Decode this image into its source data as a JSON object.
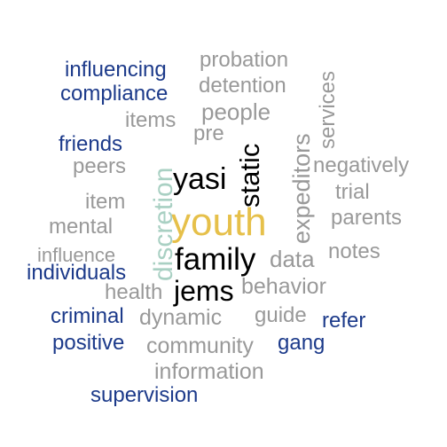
{
  "colors": {
    "gray": "#999999",
    "navy": "#1c3a8a",
    "black": "#000000",
    "gold": "#e6c04a",
    "sage": "#a9d0c3"
  },
  "words": [
    {
      "key": "youth",
      "text": "youth",
      "color": "#e6c04a"
    },
    {
      "key": "family",
      "text": "family",
      "color": "#000000"
    },
    {
      "key": "yasi",
      "text": "yasi",
      "color": "#000000"
    },
    {
      "key": "jems",
      "text": "jems",
      "color": "#000000"
    },
    {
      "key": "static",
      "text": "static",
      "color": "#000000"
    },
    {
      "key": "discretion",
      "text": "discretion",
      "color": "#a9d0c3"
    },
    {
      "key": "expeditors",
      "text": "expeditors",
      "color": "#999999"
    },
    {
      "key": "services",
      "text": "services",
      "color": "#999999"
    },
    {
      "key": "influencing",
      "text": "influencing",
      "color": "#1c3a8a"
    },
    {
      "key": "compliance",
      "text": "compliance",
      "color": "#1c3a8a"
    },
    {
      "key": "friends",
      "text": "friends",
      "color": "#1c3a8a"
    },
    {
      "key": "individuals",
      "text": "individuals",
      "color": "#1c3a8a"
    },
    {
      "key": "criminal",
      "text": "criminal",
      "color": "#1c3a8a"
    },
    {
      "key": "positive",
      "text": "positive",
      "color": "#1c3a8a"
    },
    {
      "key": "refer",
      "text": "refer",
      "color": "#1c3a8a"
    },
    {
      "key": "gang",
      "text": "gang",
      "color": "#1c3a8a"
    },
    {
      "key": "supervision",
      "text": "supervision",
      "color": "#1c3a8a"
    },
    {
      "key": "probation",
      "text": "probation",
      "color": "#999999"
    },
    {
      "key": "detention",
      "text": "detention",
      "color": "#999999"
    },
    {
      "key": "people",
      "text": "people",
      "color": "#999999"
    },
    {
      "key": "items",
      "text": "items",
      "color": "#999999"
    },
    {
      "key": "pre",
      "text": "pre",
      "color": "#999999"
    },
    {
      "key": "peers",
      "text": "peers",
      "color": "#999999"
    },
    {
      "key": "item",
      "text": "item",
      "color": "#999999"
    },
    {
      "key": "mental",
      "text": "mental",
      "color": "#999999"
    },
    {
      "key": "influence",
      "text": "influence",
      "color": "#999999"
    },
    {
      "key": "health",
      "text": "health",
      "color": "#999999"
    },
    {
      "key": "negatively",
      "text": "negatively",
      "color": "#999999"
    },
    {
      "key": "trial",
      "text": "trial",
      "color": "#999999"
    },
    {
      "key": "parents",
      "text": "parents",
      "color": "#999999"
    },
    {
      "key": "data",
      "text": "data",
      "color": "#999999"
    },
    {
      "key": "notes",
      "text": "notes",
      "color": "#999999"
    },
    {
      "key": "behavior",
      "text": "behavior",
      "color": "#999999"
    },
    {
      "key": "dynamic",
      "text": "dynamic",
      "color": "#999999"
    },
    {
      "key": "guide",
      "text": "guide",
      "color": "#999999"
    },
    {
      "key": "community",
      "text": "community",
      "color": "#999999"
    },
    {
      "key": "information",
      "text": "information",
      "color": "#999999"
    }
  ]
}
